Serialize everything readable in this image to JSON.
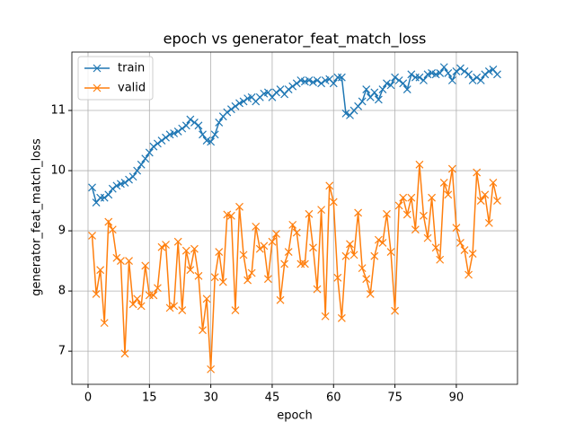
{
  "chart_data": {
    "type": "line",
    "title": "epoch vs generator_feat_match_loss",
    "x_label": "epoch",
    "y_label": "generator_feat_match_loss",
    "x": [
      1,
      2,
      3,
      4,
      5,
      6,
      7,
      8,
      9,
      10,
      11,
      12,
      13,
      14,
      15,
      16,
      17,
      18,
      19,
      20,
      21,
      22,
      23,
      24,
      25,
      26,
      27,
      28,
      29,
      30,
      31,
      32,
      33,
      34,
      35,
      36,
      37,
      38,
      39,
      40,
      41,
      42,
      43,
      44,
      45,
      46,
      47,
      48,
      49,
      50,
      51,
      52,
      53,
      54,
      55,
      56,
      57,
      58,
      59,
      60,
      61,
      62,
      63,
      64,
      65,
      66,
      67,
      68,
      69,
      70,
      71,
      72,
      73,
      74,
      75,
      76,
      77,
      78,
      79,
      80,
      81,
      82,
      83,
      84,
      85,
      86,
      87,
      88,
      89,
      90,
      91,
      92,
      93,
      94,
      95,
      96,
      97,
      98,
      99,
      100
    ],
    "series": [
      {
        "name": "train",
        "color": "#1f77b4",
        "values": [
          9.72,
          9.47,
          9.55,
          9.55,
          9.6,
          9.7,
          9.75,
          9.78,
          9.8,
          9.85,
          9.9,
          10.0,
          10.1,
          10.2,
          10.3,
          10.4,
          10.45,
          10.5,
          10.55,
          10.6,
          10.62,
          10.65,
          10.7,
          10.75,
          10.85,
          10.8,
          10.75,
          10.6,
          10.5,
          10.48,
          10.6,
          10.8,
          10.9,
          10.97,
          11.02,
          11.07,
          11.12,
          11.15,
          11.2,
          11.22,
          11.15,
          11.22,
          11.28,
          11.3,
          11.22,
          11.3,
          11.35,
          11.27,
          11.35,
          11.4,
          11.45,
          11.5,
          11.48,
          11.5,
          11.47,
          11.5,
          11.45,
          11.5,
          11.52,
          11.45,
          11.55,
          11.55,
          10.95,
          10.92,
          11.0,
          11.07,
          11.15,
          11.35,
          11.22,
          11.3,
          11.18,
          11.35,
          11.45,
          11.42,
          11.55,
          11.5,
          11.45,
          11.35,
          11.6,
          11.55,
          11.55,
          11.5,
          11.6,
          11.62,
          11.6,
          11.62,
          11.72,
          11.62,
          11.5,
          11.65,
          11.7,
          11.65,
          11.6,
          11.5,
          11.55,
          11.5,
          11.6,
          11.65,
          11.68,
          11.6
        ]
      },
      {
        "name": "valid",
        "color": "#ff7f0e",
        "values": [
          8.92,
          7.95,
          8.35,
          7.47,
          9.15,
          9.02,
          8.55,
          8.5,
          6.96,
          8.5,
          7.78,
          7.87,
          7.75,
          8.42,
          7.93,
          7.93,
          8.05,
          8.73,
          8.77,
          7.72,
          7.75,
          8.82,
          7.68,
          8.67,
          8.35,
          8.7,
          8.25,
          7.35,
          7.87,
          6.7,
          8.23,
          8.65,
          8.15,
          9.27,
          9.25,
          7.68,
          9.4,
          8.6,
          8.18,
          8.3,
          9.07,
          8.7,
          8.75,
          8.2,
          8.82,
          8.95,
          7.85,
          8.45,
          8.65,
          9.1,
          8.97,
          8.45,
          8.45,
          9.28,
          8.72,
          8.03,
          9.35,
          7.58,
          9.75,
          9.48,
          8.22,
          7.55,
          8.58,
          8.78,
          8.6,
          9.3,
          8.38,
          8.2,
          7.95,
          8.58,
          8.85,
          8.8,
          9.28,
          8.65,
          7.67,
          9.42,
          9.55,
          9.27,
          9.55,
          9.02,
          10.1,
          9.25,
          8.88,
          9.55,
          8.72,
          8.52,
          9.8,
          9.6,
          10.03,
          9.05,
          8.8,
          8.68,
          8.27,
          8.62,
          9.97,
          9.5,
          9.6,
          9.13,
          9.8,
          9.5
        ]
      }
    ],
    "xlim": [
      -3.95,
      104.95
    ],
    "ylim": [
      6.45,
      11.97
    ],
    "xticks": [
      0,
      15,
      30,
      45,
      60,
      75,
      90
    ],
    "yticks": [
      7,
      8,
      9,
      10,
      11
    ],
    "grid": true,
    "legend": "upper-left"
  }
}
